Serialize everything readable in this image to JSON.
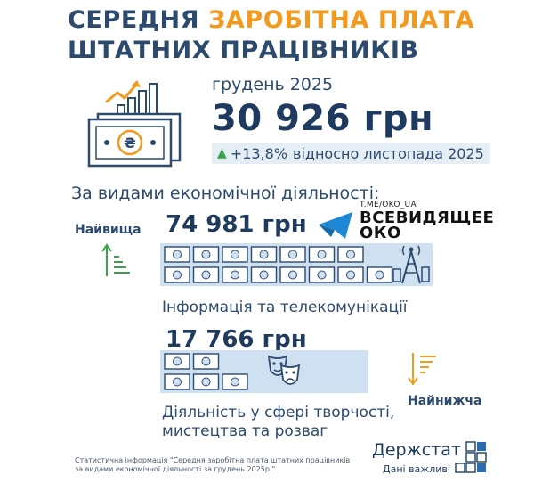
{
  "title": {
    "line1_part1": "СЕРЕДНЯ ",
    "line1_part2": "ЗАРОБІТНА ПЛАТА",
    "line2": "ШТАТНИХ ПРАЦІВНИКІВ"
  },
  "summary": {
    "period": "грудень 2025",
    "amount": "30 926 грн",
    "change_pct": "+13,8%",
    "change_text": "відносно листопада 2025"
  },
  "section_title": "За видами економічної діяльності:",
  "highest": {
    "label": "Найвища",
    "value": "74 981 грн",
    "category": "Інформація та телекомунікації"
  },
  "lowest": {
    "label": "Найнижча",
    "value": "17 766 грн",
    "category_line1": "Діяльність у сфері творчості,",
    "category_line2": "мистецтва та розваг"
  },
  "watermark": {
    "url": "T.ME/OKO_UA",
    "line1": "ВСЕВИДЯЩЕЕ",
    "line2": "ОКО"
  },
  "footer": {
    "note_line1": "Статистична інформація \"Середня заробітна плата штатних працівників",
    "note_line2": "за видами економічної діяльності за грудень 2025р.\"",
    "brand": "Держстат",
    "slogan": "Дані важливі"
  },
  "colors": {
    "navy": "#2b4a6e",
    "accent": "#f29a1f",
    "bar_fill": "#cfe0f0",
    "up_green": "#3aa04a",
    "down_orange": "#f29a1f"
  },
  "icons": [
    "money-growth-icon",
    "arrow-up-icon",
    "arrow-down-icon",
    "telecom-tower-icon",
    "theatre-masks-icon",
    "telegram-icon",
    "derzhstat-logo"
  ]
}
